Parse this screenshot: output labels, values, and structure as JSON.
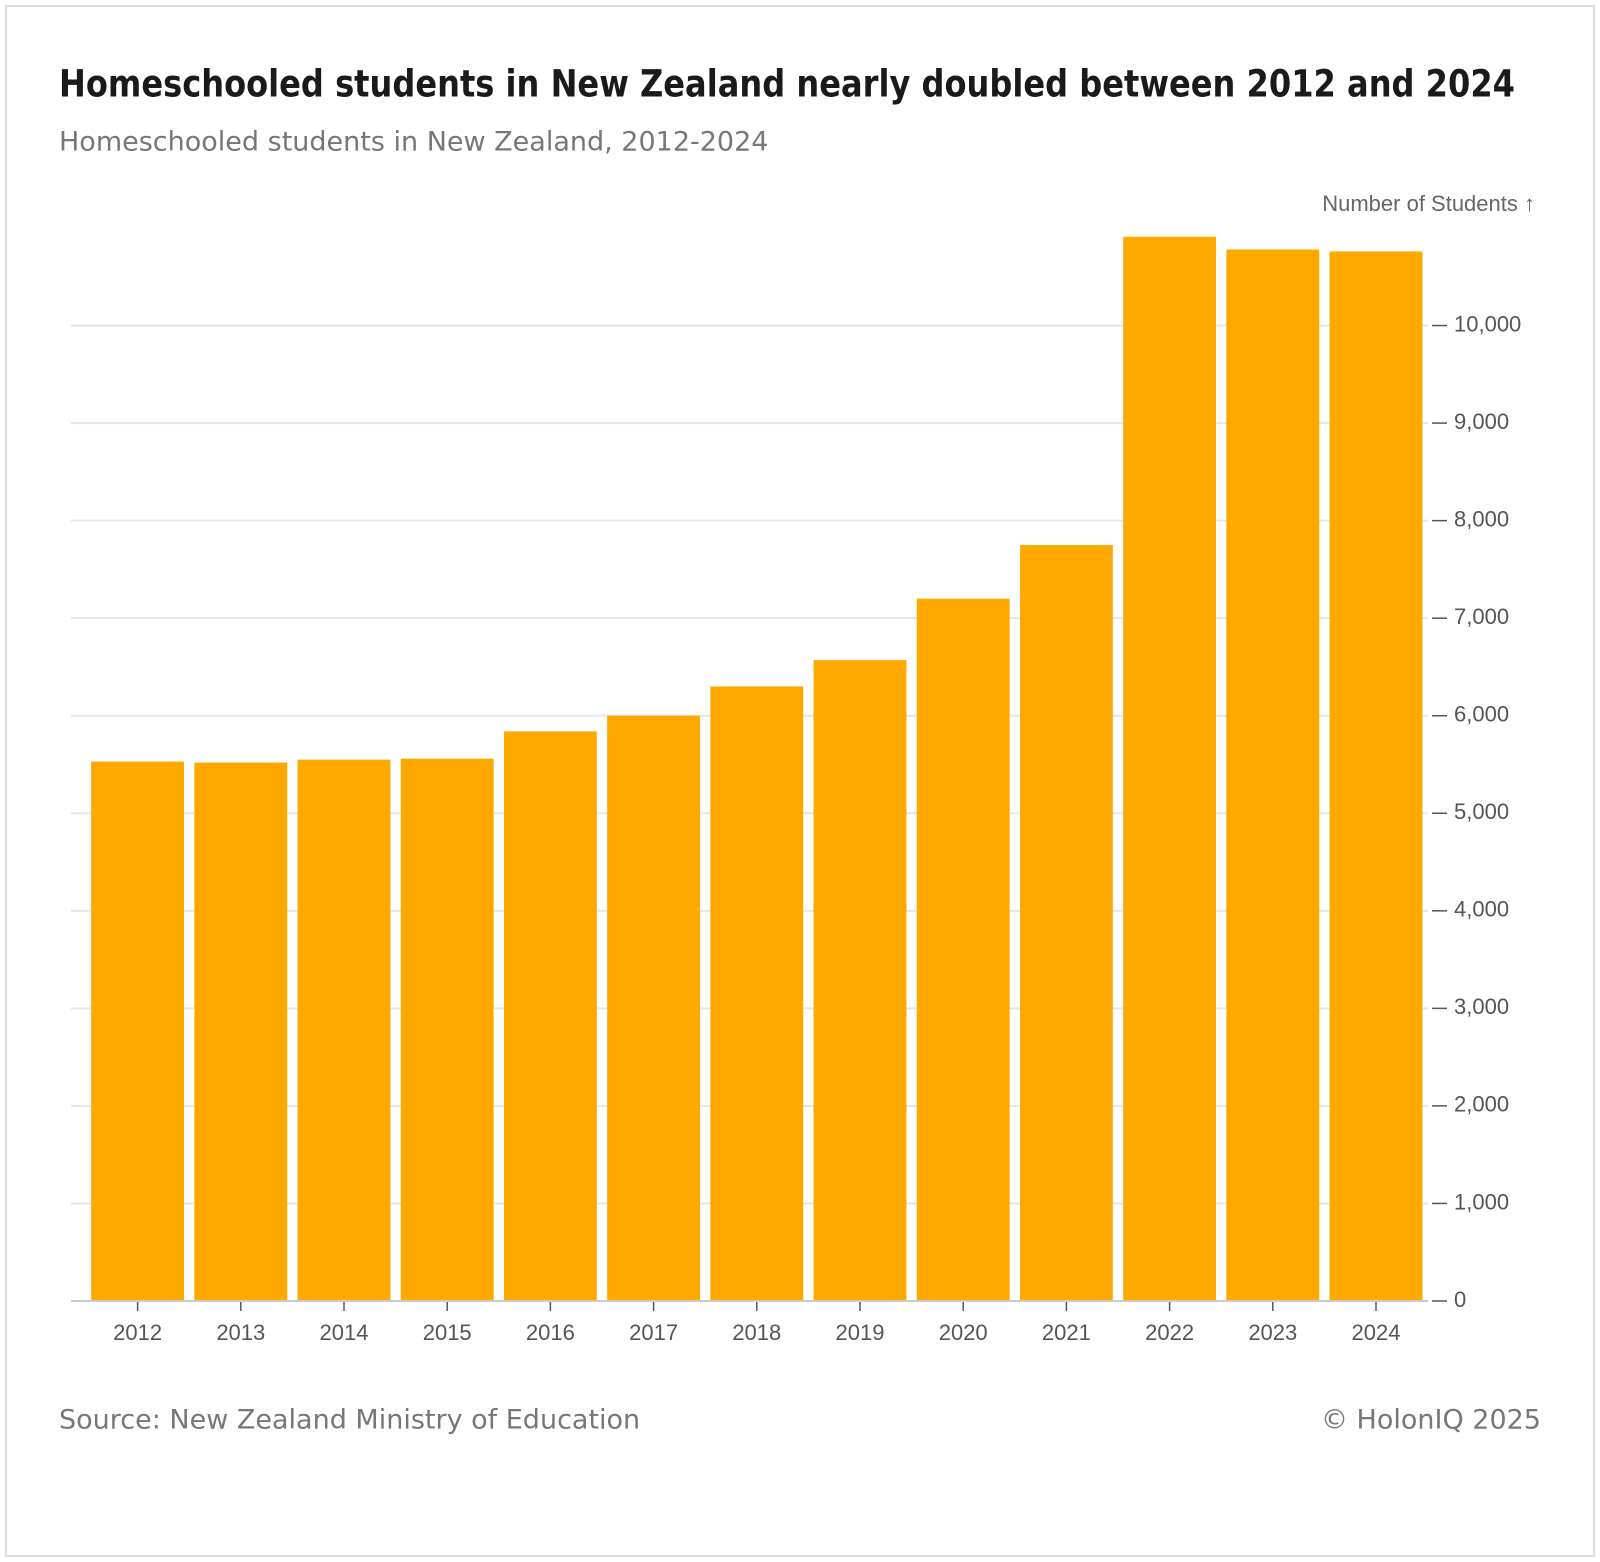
{
  "chart_data": {
    "type": "bar",
    "title": "Homeschooled students in New Zealand nearly doubled between 2012 and 2024",
    "subtitle": "Homeschooled students in New Zealand, 2012-2024",
    "y_label": "Number of Students ↑",
    "source": "Source: New Zealand Ministry of Education",
    "credit": "© HolonIQ 2025",
    "categories": [
      "2012",
      "2013",
      "2014",
      "2015",
      "2016",
      "2017",
      "2018",
      "2019",
      "2020",
      "2021",
      "2022",
      "2023",
      "2024"
    ],
    "values": [
      5530,
      5520,
      5550,
      5560,
      5840,
      6000,
      6300,
      6570,
      7200,
      7750,
      10910,
      10780,
      10760
    ],
    "color": "#ffa800",
    "ylim": [
      0,
      11000
    ],
    "yticks": [
      0,
      {
        "value": 1000,
        "label": "1,000"
      },
      {
        "value": 2000,
        "label": "2,000"
      },
      {
        "value": 3000,
        "label": "3,000"
      },
      {
        "value": 4000,
        "label": "4,000"
      },
      {
        "value": 5000,
        "label": "5,000"
      },
      {
        "value": 6000,
        "label": "6,000"
      },
      {
        "value": 7000,
        "label": "7,000"
      },
      {
        "value": 8000,
        "label": "8,000"
      },
      {
        "value": 9000,
        "label": "9,000"
      },
      {
        "value": 10000,
        "label": "10,000"
      }
    ],
    "grid": true
  }
}
